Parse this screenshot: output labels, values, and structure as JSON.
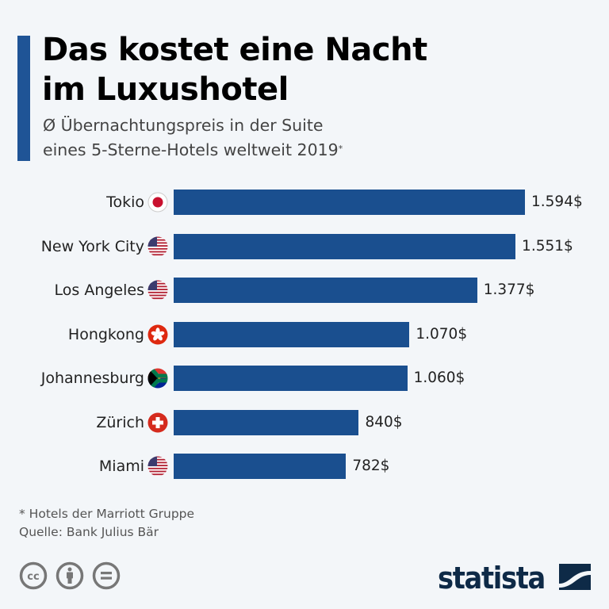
{
  "header": {
    "title_line1": "Das kostet eine Nacht",
    "title_line2": "im Luxushotel",
    "subtitle_line1": "Ø Übernachtungspreis in der Suite",
    "subtitle_line2": "eines 5-Sterne-Hotels weltweit 2019",
    "subtitle_mark": "*"
  },
  "chart_data": {
    "type": "bar",
    "orientation": "horizontal",
    "title": "Das kostet eine Nacht im Luxushotel",
    "subtitle": "Ø Übernachtungspreis in der Suite eines 5-Sterne-Hotels weltweit 2019*",
    "unit": "$",
    "categories": [
      "Tokio",
      "New York City",
      "Los Angeles",
      "Hongkong",
      "Johannesburg",
      "Zürich",
      "Miami"
    ],
    "values": [
      1594,
      1551,
      1377,
      1070,
      1060,
      840,
      782
    ],
    "value_labels": [
      "1.594$",
      "1.551$",
      "1.377$",
      "1.070$",
      "1.060$",
      "840$",
      "782$"
    ],
    "flags": [
      "japan-flag",
      "usa-flag",
      "usa-flag",
      "hongkong-flag",
      "south-africa-flag",
      "switzerland-flag",
      "usa-flag"
    ],
    "xlim": [
      0,
      1594
    ],
    "bar_color": "#1a4f8f",
    "grid": false
  },
  "footer": {
    "note": "* Hotels der Marriott Gruppe",
    "source": "Quelle: Bank Julius Bär",
    "license_icons": [
      "cc-icon",
      "attribution-icon",
      "no-derivatives-icon"
    ],
    "brand": "statista"
  },
  "colors": {
    "accent": "#1f5496",
    "bar": "#1a4f8f",
    "background": "#f3f6f9",
    "logo": "#0e2a47"
  }
}
